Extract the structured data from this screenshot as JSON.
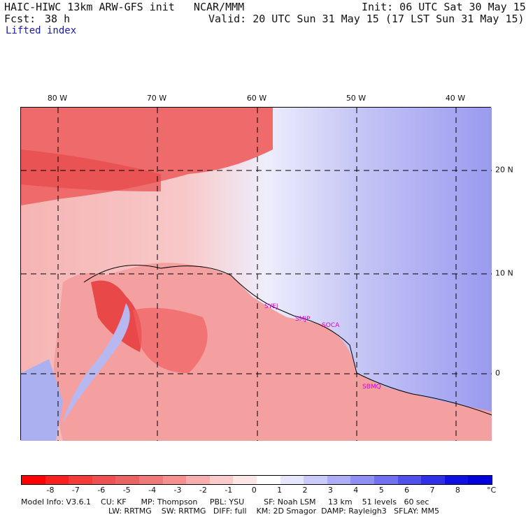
{
  "header": {
    "model": "HAIC-HIWC 13km ARW-GFS init   NCAR/MMM",
    "init": "Init: 06 UTC Sat 30 May 15",
    "fcst_label": "Fcst:",
    "fcst_value": "38 h",
    "valid": "Valid: 20 UTC Sun 31 May 15 (17 LST Sun 31 May 15)",
    "field": "Lifted index"
  },
  "map": {
    "lon_labels": [
      "80 W",
      "70 W",
      "60 W",
      "50 W",
      "40 W"
    ],
    "lat_labels": [
      "20 N",
      "10 N",
      "0"
    ],
    "stations": [
      "SYEJ",
      "SMJP",
      "SOCA",
      "SBMQ"
    ],
    "ocean_color": "#dcdcf8",
    "land_color": "#f7a8a8",
    "warm_color": "#ee4a4a"
  },
  "colorbar": {
    "tick_labels": [
      "-8",
      "-7",
      "-6",
      "-5",
      "-4",
      "-3",
      "-2",
      "-1",
      "0",
      "1",
      "2",
      "3",
      "4",
      "5",
      "6",
      "7",
      "8"
    ],
    "unit": "°C",
    "colors": [
      "#ff0000",
      "#fa2020",
      "#f53a3a",
      "#f05050",
      "#ec6363",
      "#f07878",
      "#f49090",
      "#f8aeae",
      "#fbcaca",
      "#fde6e6",
      "#ffffff",
      "#e6e6fd",
      "#cacafb",
      "#aeaef8",
      "#9090f4",
      "#7070f0",
      "#5050ec",
      "#3030e8",
      "#1010e4",
      "#0000dc"
    ]
  },
  "footer": {
    "line1": "Model Info: V3.6.1    CU: KF      MP: Thompson     PBL: YSU        SF: Noah LSM     13 km    51 levels   60 sec",
    "line2": "LW: RRTMG    SW: RRTMG   DIFF: full    KM: 2D Smagor  DAMP: Rayleigh3   SFLAY: MM5"
  }
}
